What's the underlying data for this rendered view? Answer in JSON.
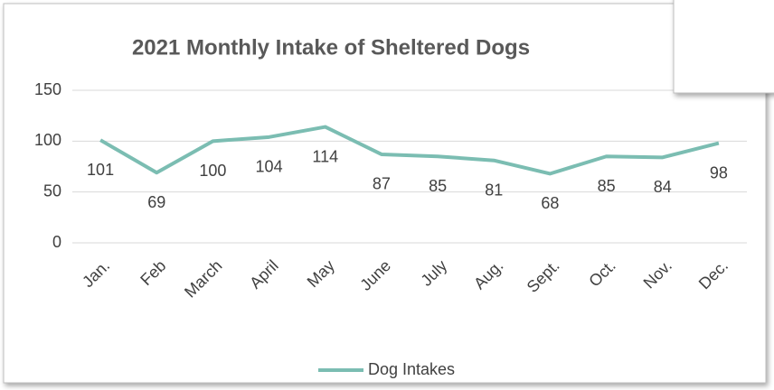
{
  "chart_data": {
    "type": "line",
    "title": "2021 Monthly Intake of Sheltered Dogs",
    "categories": [
      "Jan.",
      "Feb",
      "March",
      "April",
      "May",
      "June",
      "July",
      "Aug.",
      "Sept.",
      "Oct.",
      "Nov.",
      "Dec."
    ],
    "series": [
      {
        "name": "Dog Intakes",
        "color": "#7bbdb2",
        "values": [
          101,
          69,
          100,
          104,
          114,
          87,
          85,
          81,
          68,
          85,
          84,
          98
        ]
      }
    ],
    "ylim": [
      0,
      150
    ],
    "yticks": [
      0,
      50,
      100,
      150
    ],
    "grid": true,
    "legend": "bottom",
    "data_labels": true
  }
}
